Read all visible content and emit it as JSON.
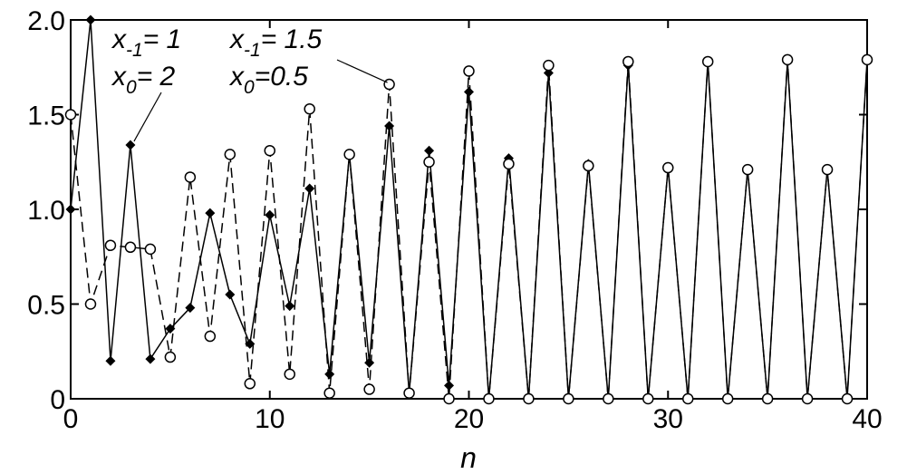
{
  "chart_data": {
    "type": "line",
    "xlabel": "n",
    "ylabel": "",
    "xlim": [
      0,
      40
    ],
    "ylim": [
      0,
      2.0
    ],
    "x_ticks": [
      "0",
      "10",
      "20",
      "30",
      "40"
    ],
    "y_ticks": [
      "0",
      "0.5",
      "1.0",
      "1.5",
      "2.0"
    ],
    "grid": false,
    "legend": "none",
    "series": [
      {
        "marker": "filled-diamond",
        "line_style": "solid",
        "x": [
          0,
          1,
          2,
          3,
          4,
          5,
          6,
          7,
          8,
          9,
          10,
          11,
          12,
          13,
          14,
          15,
          16,
          17,
          18,
          19,
          20,
          21,
          22,
          23,
          24,
          25,
          26,
          27,
          28,
          29,
          30,
          31,
          32,
          33,
          34,
          35,
          36,
          37,
          38,
          39,
          40
        ],
        "y": [
          1.0,
          2.0,
          0.2,
          1.34,
          0.21,
          0.37,
          0.48,
          0.98,
          0.55,
          0.29,
          0.97,
          0.49,
          1.11,
          0.13,
          1.29,
          0.19,
          1.44,
          0.03,
          1.31,
          0.07,
          1.62,
          0.0,
          1.27,
          0.0,
          1.72,
          0.0,
          1.24,
          0.0,
          1.76,
          0.0,
          1.22,
          0.0,
          1.78,
          0.0,
          1.21,
          0.0,
          1.78,
          0.0,
          1.21,
          0.0,
          1.79
        ]
      },
      {
        "marker": "open-circle",
        "line_style": "dashed",
        "x": [
          0,
          1,
          2,
          3,
          4,
          5,
          6,
          7,
          8,
          9,
          10,
          11,
          12,
          13,
          14,
          15,
          16,
          17,
          18,
          19,
          20,
          21,
          22,
          23,
          24,
          25,
          26,
          27,
          28,
          29,
          30,
          31,
          32,
          33,
          34,
          35,
          36,
          37,
          38,
          39,
          40
        ],
        "y": [
          1.5,
          0.5,
          0.81,
          0.8,
          0.79,
          0.22,
          1.17,
          0.33,
          1.29,
          0.08,
          1.31,
          0.13,
          1.53,
          0.03,
          1.29,
          0.05,
          1.66,
          0.03,
          1.25,
          0.0,
          1.73,
          0.0,
          1.24,
          0.0,
          1.76,
          0.0,
          1.23,
          0.0,
          1.78,
          0.0,
          1.22,
          0.0,
          1.78,
          0.0,
          1.21,
          0.0,
          1.79,
          0.0,
          1.21,
          0.0,
          1.79
        ]
      }
    ],
    "annotations": [
      {
        "base": "x",
        "sub": "-1",
        "rest": "= 1",
        "line": 0,
        "group": 0
      },
      {
        "base": "x",
        "sub": "0",
        "rest": "= 2",
        "line": 1,
        "group": 0
      },
      {
        "base": "x",
        "sub": "-1",
        "rest": "= 1.5",
        "line": 0,
        "group": 1
      },
      {
        "base": "x",
        "sub": "0",
        "rest": "=0.5",
        "line": 1,
        "group": 1
      }
    ]
  }
}
